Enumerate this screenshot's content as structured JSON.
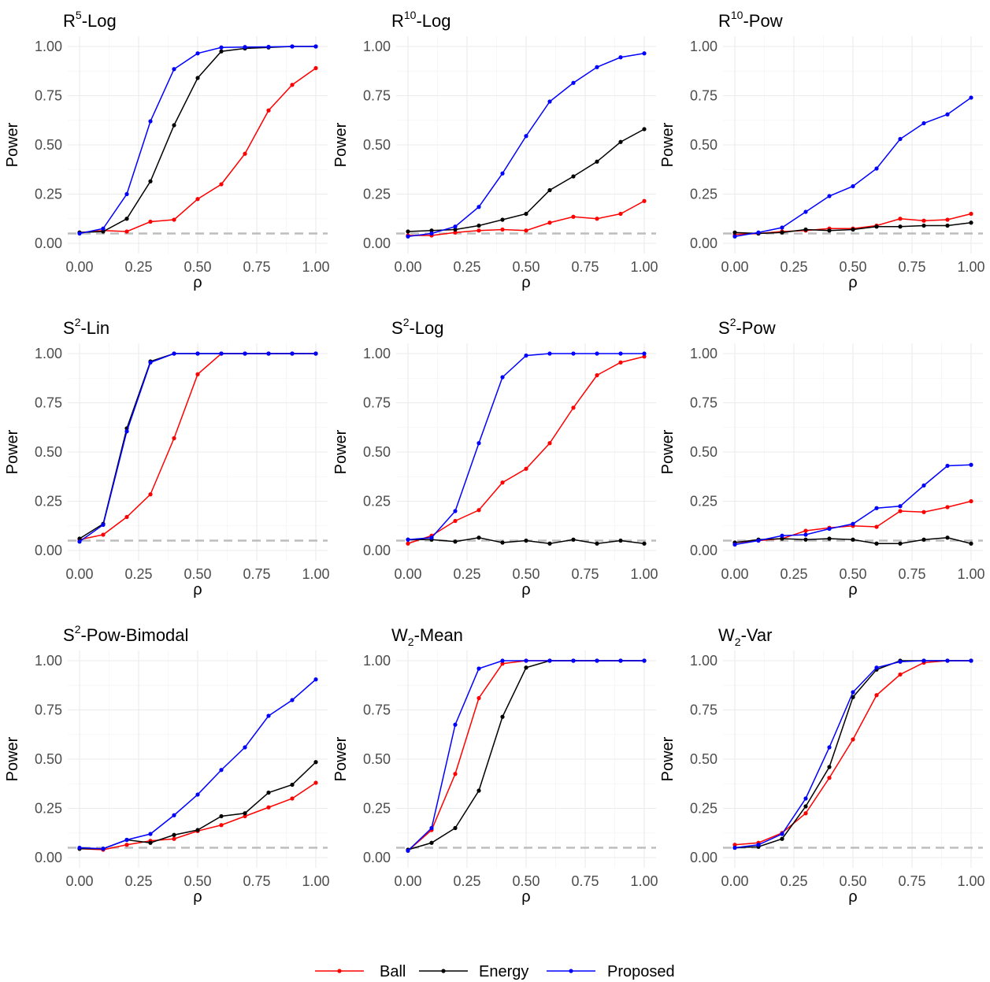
{
  "chart_data": {
    "type": "line",
    "layout": "3x3 facet grid",
    "legend": {
      "position": "bottom",
      "entries": [
        {
          "name": "Ball",
          "color": "#ff0000"
        },
        {
          "name": "Energy",
          "color": "#000000"
        },
        {
          "name": "Proposed",
          "color": "#0000ff"
        }
      ]
    },
    "reference_line": {
      "y": 0.05,
      "style": "dashed",
      "color": "#bdbdbd"
    },
    "xlim": [
      0,
      1
    ],
    "ylim": [
      0,
      1
    ],
    "x_ticks": [
      "0.00",
      "0.25",
      "0.50",
      "0.75",
      "1.00"
    ],
    "y_ticks": [
      "0.00",
      "0.25",
      "0.50",
      "0.75",
      "1.00"
    ],
    "x": [
      0.0,
      0.1,
      0.2,
      0.3,
      0.4,
      0.5,
      0.6,
      0.7,
      0.8,
      0.9,
      1.0
    ],
    "panels": [
      {
        "title": {
          "pre": "R",
          "script": "5",
          "script_type": "sup",
          "post": "-Log"
        },
        "xlabel": "ρ",
        "ylabel": "Power",
        "series": [
          {
            "name": "Ball",
            "values": [
              0.055,
              0.065,
              0.06,
              0.11,
              0.12,
              0.225,
              0.3,
              0.455,
              0.675,
              0.805,
              0.89
            ]
          },
          {
            "name": "Energy",
            "values": [
              0.055,
              0.06,
              0.125,
              0.315,
              0.6,
              0.84,
              0.975,
              0.99,
              0.995,
              1.0,
              1.0
            ]
          },
          {
            "name": "Proposed",
            "values": [
              0.05,
              0.075,
              0.25,
              0.62,
              0.885,
              0.965,
              0.995,
              0.997,
              0.998,
              1.0,
              1.0
            ]
          }
        ]
      },
      {
        "title": {
          "pre": "R",
          "script": "10",
          "script_type": "sup",
          "post": "-Log"
        },
        "xlabel": "ρ",
        "ylabel": "Power",
        "series": [
          {
            "name": "Ball",
            "values": [
              0.04,
              0.04,
              0.055,
              0.065,
              0.07,
              0.065,
              0.105,
              0.135,
              0.125,
              0.15,
              0.215
            ]
          },
          {
            "name": "Energy",
            "values": [
              0.06,
              0.065,
              0.07,
              0.09,
              0.12,
              0.15,
              0.27,
              0.34,
              0.415,
              0.515,
              0.58
            ]
          },
          {
            "name": "Proposed",
            "values": [
              0.035,
              0.05,
              0.085,
              0.185,
              0.355,
              0.545,
              0.72,
              0.815,
              0.895,
              0.945,
              0.965
            ]
          }
        ]
      },
      {
        "title": {
          "pre": "R",
          "script": "10",
          "script_type": "sup",
          "post": "-Pow"
        },
        "xlabel": "ρ",
        "ylabel": "Power",
        "series": [
          {
            "name": "Ball",
            "values": [
              0.045,
              0.05,
              0.06,
              0.065,
              0.075,
              0.075,
              0.09,
              0.125,
              0.115,
              0.12,
              0.15
            ]
          },
          {
            "name": "Energy",
            "values": [
              0.055,
              0.05,
              0.055,
              0.07,
              0.065,
              0.07,
              0.085,
              0.085,
              0.09,
              0.09,
              0.105
            ]
          },
          {
            "name": "Proposed",
            "values": [
              0.035,
              0.055,
              0.08,
              0.16,
              0.24,
              0.29,
              0.38,
              0.53,
              0.61,
              0.655,
              0.74
            ]
          }
        ]
      },
      {
        "title": {
          "pre": "S",
          "script": "2",
          "script_type": "sup",
          "post": "-Lin"
        },
        "xlabel": "ρ",
        "ylabel": "Power",
        "series": [
          {
            "name": "Ball",
            "values": [
              0.055,
              0.08,
              0.17,
              0.285,
              0.57,
              0.895,
              1.0,
              1.0,
              1.0,
              1.0,
              1.0
            ]
          },
          {
            "name": "Energy",
            "values": [
              0.06,
              0.135,
              0.62,
              0.96,
              1.0,
              1.0,
              1.0,
              1.0,
              1.0,
              1.0,
              1.0
            ]
          },
          {
            "name": "Proposed",
            "values": [
              0.045,
              0.13,
              0.605,
              0.955,
              1.0,
              1.0,
              1.0,
              1.0,
              1.0,
              1.0,
              1.0
            ]
          }
        ]
      },
      {
        "title": {
          "pre": "S",
          "script": "2",
          "script_type": "sup",
          "post": "-Log"
        },
        "xlabel": "ρ",
        "ylabel": "Power",
        "series": [
          {
            "name": "Ball",
            "values": [
              0.035,
              0.075,
              0.15,
              0.205,
              0.345,
              0.415,
              0.545,
              0.725,
              0.89,
              0.955,
              0.985
            ]
          },
          {
            "name": "Energy",
            "values": [
              0.055,
              0.055,
              0.045,
              0.065,
              0.04,
              0.05,
              0.035,
              0.055,
              0.035,
              0.05,
              0.035
            ]
          },
          {
            "name": "Proposed",
            "values": [
              0.055,
              0.065,
              0.2,
              0.545,
              0.88,
              0.99,
              1.0,
              1.0,
              1.0,
              1.0,
              1.0
            ]
          }
        ]
      },
      {
        "title": {
          "pre": "S",
          "script": "2",
          "script_type": "sup",
          "post": "-Pow"
        },
        "xlabel": "ρ",
        "ylabel": "Power",
        "series": [
          {
            "name": "Ball",
            "values": [
              0.04,
              0.05,
              0.06,
              0.1,
              0.115,
              0.125,
              0.12,
              0.2,
              0.195,
              0.22,
              0.25
            ]
          },
          {
            "name": "Energy",
            "values": [
              0.04,
              0.055,
              0.06,
              0.055,
              0.06,
              0.055,
              0.035,
              0.035,
              0.055,
              0.065,
              0.035
            ]
          },
          {
            "name": "Proposed",
            "values": [
              0.03,
              0.05,
              0.075,
              0.08,
              0.11,
              0.135,
              0.215,
              0.225,
              0.33,
              0.43,
              0.435
            ]
          }
        ]
      },
      {
        "title": {
          "pre": "S",
          "script": "2",
          "script_type": "sup",
          "post": "-Pow-Bimodal"
        },
        "xlabel": "ρ",
        "ylabel": "Power",
        "series": [
          {
            "name": "Ball",
            "values": [
              0.045,
              0.04,
              0.065,
              0.085,
              0.095,
              0.135,
              0.165,
              0.21,
              0.255,
              0.3,
              0.38
            ]
          },
          {
            "name": "Energy",
            "values": [
              0.045,
              0.045,
              0.09,
              0.075,
              0.115,
              0.14,
              0.21,
              0.225,
              0.33,
              0.37,
              0.485
            ]
          },
          {
            "name": "Proposed",
            "values": [
              0.05,
              0.045,
              0.09,
              0.12,
              0.215,
              0.32,
              0.445,
              0.56,
              0.72,
              0.8,
              0.905
            ]
          }
        ]
      },
      {
        "title": {
          "pre": "W",
          "script": "2",
          "script_type": "sub",
          "post": "-Mean"
        },
        "xlabel": "ρ",
        "ylabel": "Power",
        "series": [
          {
            "name": "Ball",
            "values": [
              0.035,
              0.14,
              0.425,
              0.81,
              0.985,
              1.0,
              1.0,
              1.0,
              1.0,
              1.0,
              1.0
            ]
          },
          {
            "name": "Energy",
            "values": [
              0.04,
              0.075,
              0.15,
              0.34,
              0.715,
              0.965,
              1.0,
              1.0,
              1.0,
              1.0,
              1.0
            ]
          },
          {
            "name": "Proposed",
            "values": [
              0.035,
              0.15,
              0.675,
              0.96,
              1.0,
              1.0,
              1.0,
              1.0,
              1.0,
              1.0,
              1.0
            ]
          }
        ]
      },
      {
        "title": {
          "pre": "W",
          "script": "2",
          "script_type": "sub",
          "post": "-Var"
        },
        "xlabel": "ρ",
        "ylabel": "Power",
        "series": [
          {
            "name": "Ball",
            "values": [
              0.065,
              0.075,
              0.125,
              0.225,
              0.405,
              0.6,
              0.825,
              0.93,
              0.99,
              1.0,
              1.0
            ]
          },
          {
            "name": "Energy",
            "values": [
              0.05,
              0.055,
              0.095,
              0.26,
              0.46,
              0.815,
              0.955,
              1.0,
              1.0,
              1.0,
              1.0
            ]
          },
          {
            "name": "Proposed",
            "values": [
              0.05,
              0.065,
              0.12,
              0.3,
              0.56,
              0.84,
              0.965,
              0.995,
              1.0,
              1.0,
              1.0
            ]
          }
        ]
      }
    ]
  }
}
